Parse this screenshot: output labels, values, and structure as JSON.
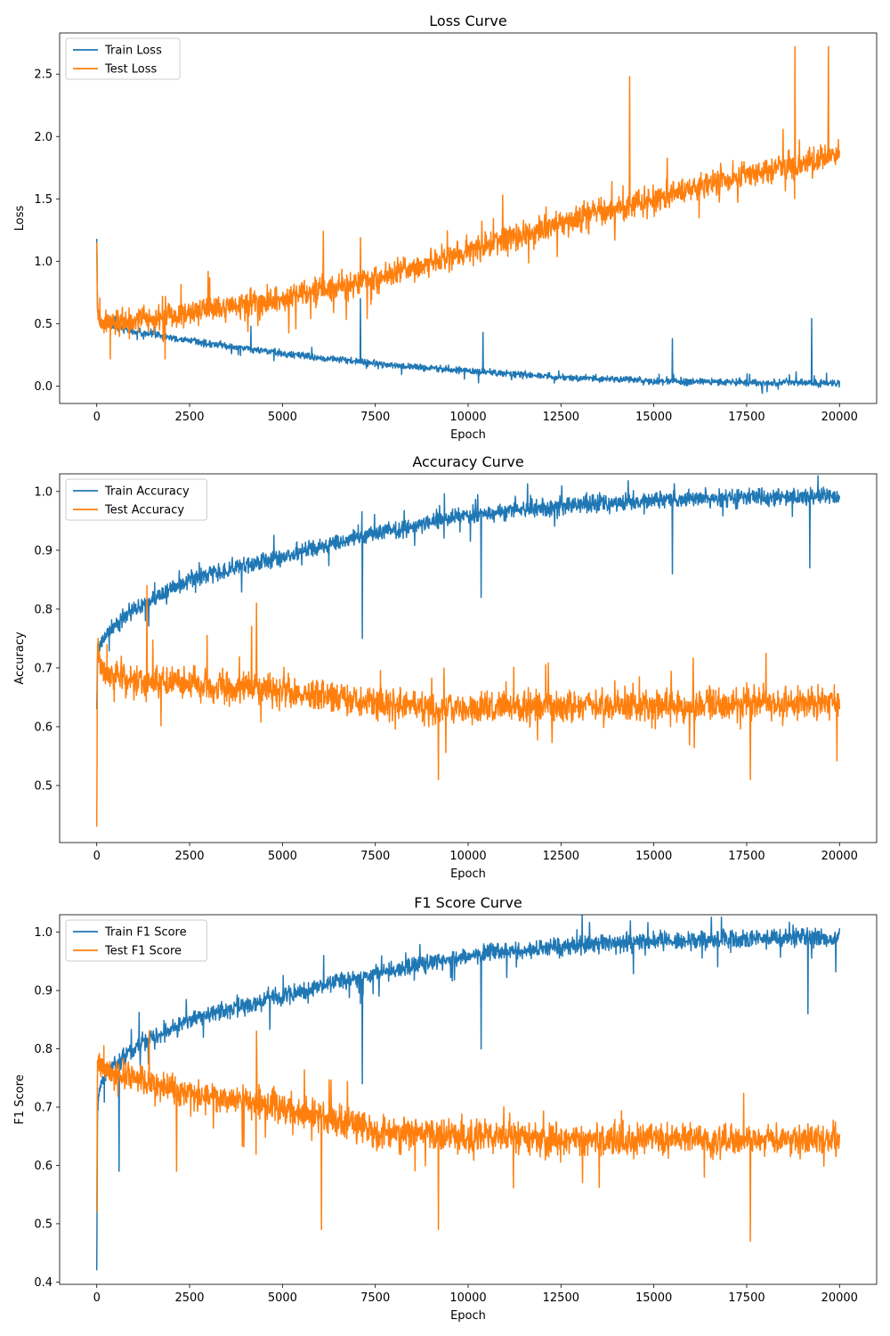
{
  "colors": {
    "train": "#1f77b4",
    "test": "#ff7f0e"
  },
  "chart_data": [
    {
      "type": "line",
      "title": "Loss Curve",
      "xlabel": "Epoch",
      "ylabel": "Loss",
      "xlim": [
        -1000,
        21000
      ],
      "ylim": [
        -0.14,
        2.83
      ],
      "xticks": [
        0,
        2500,
        5000,
        7500,
        10000,
        12500,
        15000,
        17500,
        20000
      ],
      "yticks": [
        0.0,
        0.5,
        1.0,
        1.5,
        2.0,
        2.5
      ],
      "ytick_labels": [
        "0.0",
        "0.5",
        "1.0",
        "1.5",
        "2.0",
        "2.5"
      ],
      "legend_position": "top-left",
      "series": [
        {
          "name": "Train Loss",
          "color": "#1f77b4",
          "x": [
            0,
            20,
            100,
            300,
            1000,
            2500,
            5000,
            7500,
            10000,
            12500,
            15000,
            17500,
            20000
          ],
          "y": [
            1.18,
            0.62,
            0.52,
            0.49,
            0.44,
            0.36,
            0.26,
            0.18,
            0.12,
            0.07,
            0.04,
            0.03,
            0.02
          ],
          "noise": 0.04,
          "spikes": [
            [
              7100,
              0.7
            ],
            [
              10400,
              0.43
            ],
            [
              15500,
              0.38
            ],
            [
              19250,
              0.54
            ],
            [
              4150,
              0.48
            ]
          ]
        },
        {
          "name": "Test Loss",
          "color": "#ff7f0e",
          "x": [
            0,
            20,
            100,
            300,
            1000,
            2500,
            5000,
            7500,
            10000,
            12500,
            15000,
            17500,
            20000
          ],
          "y": [
            1.15,
            0.6,
            0.5,
            0.5,
            0.52,
            0.58,
            0.7,
            0.86,
            1.08,
            1.3,
            1.5,
            1.7,
            1.85
          ],
          "noise": 0.16,
          "spikes": [
            [
              14350,
              2.48
            ],
            [
              18800,
              2.72
            ],
            [
              19700,
              2.72
            ],
            [
              6100,
              1.24
            ],
            [
              7100,
              1.19
            ]
          ]
        }
      ]
    },
    {
      "type": "line",
      "title": "Accuracy Curve",
      "xlabel": "Epoch",
      "ylabel": "Accuracy",
      "xlim": [
        -1000,
        21000
      ],
      "ylim": [
        0.403,
        1.03
      ],
      "xticks": [
        0,
        2500,
        5000,
        7500,
        10000,
        12500,
        15000,
        17500,
        20000
      ],
      "yticks": [
        0.5,
        0.6,
        0.7,
        0.8,
        0.9,
        1.0
      ],
      "ytick_labels": [
        "0.5",
        "0.6",
        "0.7",
        "0.8",
        "0.9",
        "1.0"
      ],
      "legend_position": "top-left",
      "series": [
        {
          "name": "Train Accuracy",
          "color": "#1f77b4",
          "x": [
            0,
            20,
            100,
            300,
            1000,
            2500,
            5000,
            7500,
            10000,
            12500,
            15000,
            17500,
            20000
          ],
          "y": [
            0.63,
            0.72,
            0.74,
            0.76,
            0.8,
            0.85,
            0.89,
            0.93,
            0.96,
            0.975,
            0.985,
            0.99,
            0.99
          ],
          "noise": 0.022,
          "spikes": [
            [
              7150,
              0.75
            ],
            [
              10350,
              0.82
            ],
            [
              15500,
              0.86
            ],
            [
              19200,
              0.87
            ]
          ]
        },
        {
          "name": "Test Accuracy",
          "color": "#ff7f0e",
          "x": [
            0,
            20,
            100,
            300,
            1000,
            2500,
            5000,
            7500,
            10000,
            12500,
            15000,
            17500,
            20000
          ],
          "y": [
            0.43,
            0.74,
            0.7,
            0.69,
            0.68,
            0.67,
            0.66,
            0.64,
            0.63,
            0.635,
            0.635,
            0.64,
            0.64
          ],
          "noise": 0.04,
          "spikes": [
            [
              1350,
              0.84
            ],
            [
              4300,
              0.81
            ],
            [
              9200,
              0.51
            ],
            [
              17600,
              0.51
            ]
          ]
        }
      ]
    },
    {
      "type": "line",
      "title": "F1 Score Curve",
      "xlabel": "Epoch",
      "ylabel": "F1 Score",
      "xlim": [
        -1000,
        21000
      ],
      "ylim": [
        0.396,
        1.03
      ],
      "xticks": [
        0,
        2500,
        5000,
        7500,
        10000,
        12500,
        15000,
        17500,
        20000
      ],
      "yticks": [
        0.4,
        0.5,
        0.6,
        0.7,
        0.8,
        0.9,
        1.0
      ],
      "ytick_labels": [
        "0.4",
        "0.5",
        "0.6",
        "0.7",
        "0.8",
        "0.9",
        "1.0"
      ],
      "legend_position": "top-left",
      "series": [
        {
          "name": "Train F1 Score",
          "color": "#1f77b4",
          "x": [
            0,
            20,
            100,
            300,
            1000,
            2500,
            5000,
            7500,
            10000,
            12500,
            15000,
            17500,
            20000
          ],
          "y": [
            0.42,
            0.7,
            0.74,
            0.76,
            0.8,
            0.85,
            0.89,
            0.93,
            0.96,
            0.975,
            0.985,
            0.99,
            0.99
          ],
          "noise": 0.022,
          "spikes": [
            [
              600,
              0.59
            ],
            [
              7150,
              0.74
            ],
            [
              10350,
              0.8
            ],
            [
              19150,
              0.86
            ]
          ]
        },
        {
          "name": "Test F1 Score",
          "color": "#ff7f0e",
          "x": [
            0,
            20,
            100,
            300,
            1000,
            2500,
            5000,
            7500,
            10000,
            12500,
            15000,
            17500,
            20000
          ],
          "y": [
            0.52,
            0.78,
            0.77,
            0.76,
            0.75,
            0.72,
            0.7,
            0.66,
            0.65,
            0.645,
            0.645,
            0.645,
            0.645
          ],
          "noise": 0.04,
          "spikes": [
            [
              6050,
              0.49
            ],
            [
              9200,
              0.49
            ],
            [
              17600,
              0.47
            ],
            [
              2150,
              0.59
            ],
            [
              4300,
              0.83
            ]
          ]
        }
      ]
    }
  ]
}
